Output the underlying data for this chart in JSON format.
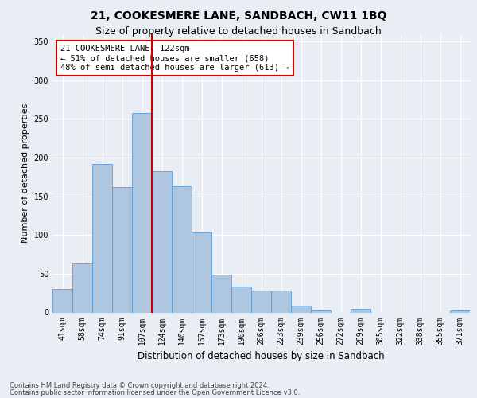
{
  "title": "21, COOKESMERE LANE, SANDBACH, CW11 1BQ",
  "subtitle": "Size of property relative to detached houses in Sandbach",
  "xlabel": "Distribution of detached houses by size in Sandbach",
  "ylabel": "Number of detached properties",
  "footer_line1": "Contains HM Land Registry data © Crown copyright and database right 2024.",
  "footer_line2": "Contains public sector information licensed under the Open Government Licence v3.0.",
  "bar_labels": [
    "41sqm",
    "58sqm",
    "74sqm",
    "91sqm",
    "107sqm",
    "124sqm",
    "140sqm",
    "157sqm",
    "173sqm",
    "190sqm",
    "206sqm",
    "223sqm",
    "239sqm",
    "256sqm",
    "272sqm",
    "289sqm",
    "305sqm",
    "322sqm",
    "338sqm",
    "355sqm",
    "371sqm"
  ],
  "bar_values": [
    30,
    63,
    192,
    162,
    258,
    183,
    163,
    103,
    49,
    33,
    28,
    28,
    9,
    3,
    0,
    5,
    0,
    0,
    0,
    0,
    3
  ],
  "bar_color": "#aec6df",
  "bar_edge_color": "#5b9bd5",
  "highlight_index": 5,
  "highlight_color": "#cc0000",
  "annotation_text": "21 COOKESMERE LANE: 122sqm\n← 51% of detached houses are smaller (658)\n48% of semi-detached houses are larger (613) →",
  "annotation_box_color": "#ffffff",
  "annotation_box_edge": "#cc0000",
  "ylim": [
    0,
    360
  ],
  "yticks": [
    0,
    50,
    100,
    150,
    200,
    250,
    300,
    350
  ],
  "background_color": "#e8eef4",
  "plot_bg_color": "#e8eef4",
  "grid_color": "#ffffff",
  "title_fontsize": 10,
  "subtitle_fontsize": 9,
  "tick_fontsize": 7,
  "ylabel_fontsize": 8,
  "xlabel_fontsize": 8.5,
  "footer_fontsize": 6,
  "ann_fontsize": 7.5
}
